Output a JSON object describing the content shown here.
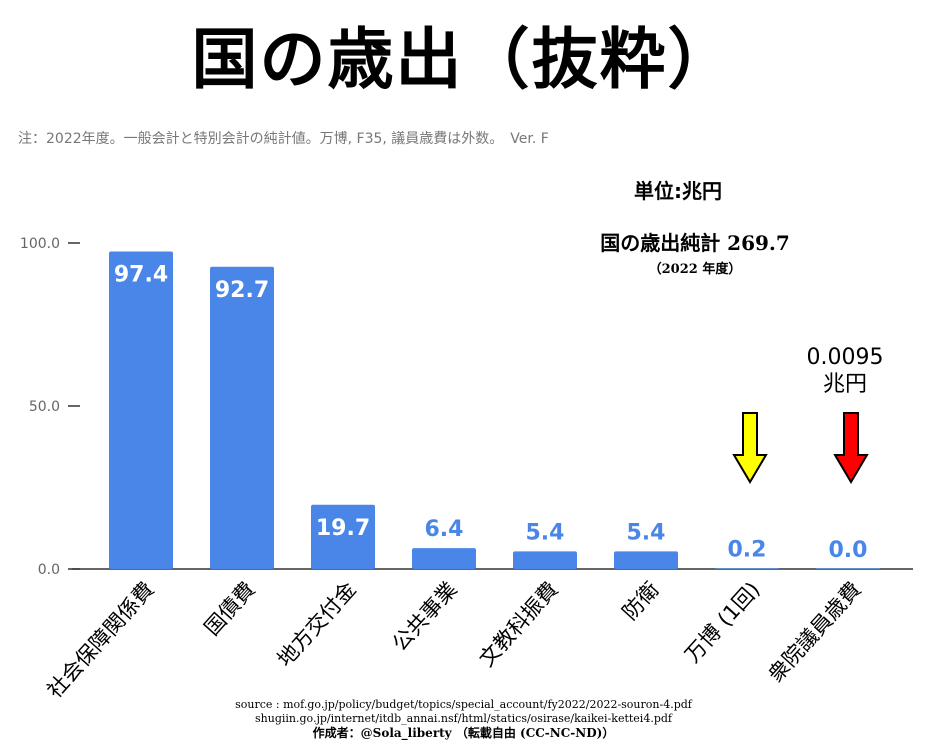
{
  "title": "国の歳出（抜粋）",
  "note": "注：2022年度。一般会計と特別会計の純計値。万博, F35, 議員歳費は外数。　Ver. F",
  "unit_label": "単位:兆円",
  "total": {
    "label": "国の歳出純計 269.7",
    "year": "（2022 年度）"
  },
  "annotation": {
    "value": "0.0095",
    "unit": "兆円"
  },
  "source": {
    "line1": "source : mof.go.jp/policy/budget/topics/special_account/fy2022/2022-souron-4.pdf",
    "line2": "shugiin.go.jp/internet/itdb_annai.nsf/html/statics/osirase/kaikei-kettei4.pdf",
    "credit": "作成者：@Sola_liberty （転載自由 (CC-NC-ND)）"
  },
  "colors": {
    "bar": "#4a86e8",
    "label_inside": "#ffffff",
    "label_outside": "#4a86e8",
    "arrow_yellow": "#ffff00",
    "arrow_red": "#ff0000",
    "axis": "#333333",
    "tick_text": "#666666"
  },
  "chart_data": {
    "type": "bar",
    "categories": [
      "社会保障関係費",
      "国債費",
      "地方交付金",
      "公共事業",
      "文教科振費",
      "防衛",
      "万博 (1回)",
      "衆院議員歳費"
    ],
    "values": [
      97.4,
      92.7,
      19.7,
      6.4,
      5.4,
      5.4,
      0.2,
      0.0
    ],
    "value_labels": [
      "97.4",
      "92.7",
      "19.7",
      "6.4",
      "5.4",
      "5.4",
      "0.2",
      "0.0"
    ],
    "yticks": [
      "0.0",
      "50.0",
      "100.0"
    ],
    "ytick_values": [
      0,
      50,
      100
    ],
    "ylim": [
      0,
      100
    ],
    "grid": false,
    "legend": "none"
  }
}
